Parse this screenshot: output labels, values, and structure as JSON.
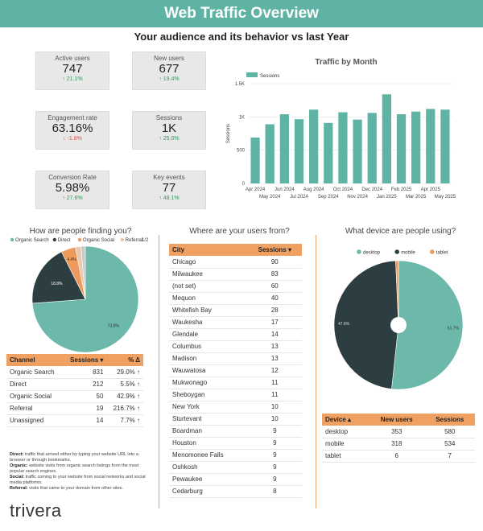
{
  "header": {
    "title": "Web Traffic Overview"
  },
  "subtitle": "Your audience and its behavior vs last Year",
  "kpis": [
    {
      "label": "Active users",
      "value": "747",
      "change": "↑ 21.1%",
      "dir": "up"
    },
    {
      "label": "New users",
      "value": "677",
      "change": "↑ 19.4%",
      "dir": "up"
    },
    {
      "label": "Engagement rate",
      "value": "63.16%",
      "change": "↓ -1.8%",
      "dir": "down"
    },
    {
      "label": "Sessions",
      "value": "1K",
      "change": "↑ 25.0%",
      "dir": "up"
    },
    {
      "label": "Conversion Rate",
      "value": "5.98%",
      "change": "↑ 27.6%",
      "dir": "up"
    },
    {
      "label": "Key events",
      "value": "77",
      "change": "↑ 48.1%",
      "dir": "up"
    }
  ],
  "chart_data": [
    {
      "type": "bar",
      "title": "Traffic by Month",
      "legend": "Sessions",
      "ylabel": "Sessions",
      "ylim": [
        0,
        1500
      ],
      "yticks": [
        "0",
        "500",
        "1K",
        "1.5K"
      ],
      "categories": [
        "Apr 2024",
        "May 2024",
        "Jun 2024",
        "Jul 2024",
        "Aug 2024",
        "Sep 2024",
        "Oct 2024",
        "Nov 2024",
        "Dec 2024",
        "Jan 2025",
        "Feb 2025",
        "Mar 2025",
        "Apr 2025",
        "May 2025"
      ],
      "x_labels_top": [
        "Apr 2024",
        "Jun 2024",
        "Aug 2024",
        "Oct 2024",
        "Dec 2024",
        "Feb 2025",
        "Apr 2025"
      ],
      "x_labels_bottom": [
        "May 2024",
        "Jul 2024",
        "Sep 2024",
        "Nov 2024",
        "Jan 2025",
        "Mar 2025",
        "May 2025"
      ],
      "values": [
        690,
        890,
        1040,
        965,
        1110,
        910,
        1070,
        960,
        1060,
        1340,
        1040,
        1080,
        1120,
        1110
      ],
      "color": "#5fb3a5"
    },
    {
      "type": "pie",
      "title": "How are people finding you?",
      "legend": [
        "Organic Search",
        "Direct",
        "Organic Social",
        "Referral"
      ],
      "pager": "1/2",
      "slices": [
        {
          "label": "Organic Search",
          "value": 73.8,
          "color": "#6cb8ab"
        },
        {
          "label": "Direct",
          "value": 18.8,
          "color": "#2d3e42"
        },
        {
          "label": "Organic Social",
          "value": 4.4,
          "color": "#ee9a5c"
        },
        {
          "label": "Referral",
          "value": 1.7,
          "color": "#e6c8ae"
        },
        {
          "label": "Unassigned",
          "value": 1.3,
          "color": "#c9c9c9"
        }
      ],
      "data_labels": [
        "73.8%",
        "18.8%",
        "4.4%"
      ]
    },
    {
      "type": "pie",
      "title": "What device are people using?",
      "legend": [
        "desktop",
        "mobile",
        "tablet"
      ],
      "slices": [
        {
          "label": "desktop",
          "value": 51.7,
          "color": "#6cb8ab"
        },
        {
          "label": "mobile",
          "value": 47.6,
          "color": "#2d3e42"
        },
        {
          "label": "tablet",
          "value": 0.7,
          "color": "#ee9a5c"
        }
      ],
      "data_labels": [
        "51.7%",
        "47.6%"
      ]
    }
  ],
  "channel_table": {
    "headers": [
      "Channel",
      "Sessions ▾",
      "% Δ"
    ],
    "rows": [
      [
        "Organic Search",
        "831",
        "29.0% ↑"
      ],
      [
        "Direct",
        "212",
        "5.5% ↑"
      ],
      [
        "Organic Social",
        "50",
        "42.9% ↑"
      ],
      [
        "Referral",
        "19",
        "216.7% ↑"
      ],
      [
        "Unassigned",
        "14",
        "7.7% ↑"
      ]
    ]
  },
  "city_section": {
    "title": "Where are your users from?"
  },
  "city_table": {
    "headers": [
      "City",
      "Sessions ▾"
    ],
    "rows": [
      [
        "Chicago",
        "90"
      ],
      [
        "Milwaukee",
        "83"
      ],
      [
        "(not set)",
        "60"
      ],
      [
        "Mequon",
        "40"
      ],
      [
        "Whitefish Bay",
        "28"
      ],
      [
        "Waukesha",
        "17"
      ],
      [
        "Glendale",
        "14"
      ],
      [
        "Columbus",
        "13"
      ],
      [
        "Madison",
        "13"
      ],
      [
        "Wauwatosa",
        "12"
      ],
      [
        "Mukwonago",
        "11"
      ],
      [
        "Sheboygan",
        "11"
      ],
      [
        "New York",
        "10"
      ],
      [
        "Sturtevant",
        "10"
      ],
      [
        "Boardman",
        "9"
      ],
      [
        "Houston",
        "9"
      ],
      [
        "Menomonee Falls",
        "9"
      ],
      [
        "Oshkosh",
        "9"
      ],
      [
        "Pewaukee",
        "9"
      ],
      [
        "Cedarburg",
        "8"
      ]
    ]
  },
  "device_table": {
    "headers": [
      "Device ▴",
      "New users",
      "Sessions"
    ],
    "rows": [
      [
        "desktop",
        "353",
        "580"
      ],
      [
        "mobile",
        "318",
        "534"
      ],
      [
        "tablet",
        "6",
        "7"
      ]
    ]
  },
  "notes": [
    {
      "term": "Direct:",
      "text": "traffic that arrived either by typing your website URL into a browser or through bookmarks."
    },
    {
      "term": "Organic:",
      "text": "website visits from organic search listings from the most popular search engines."
    },
    {
      "term": "Social:",
      "text": "traffic coming to your website from social networks and social media platforms."
    },
    {
      "term": "Referral:",
      "text": "visits that came to your domain from other sites."
    }
  ],
  "logo": "trivera"
}
